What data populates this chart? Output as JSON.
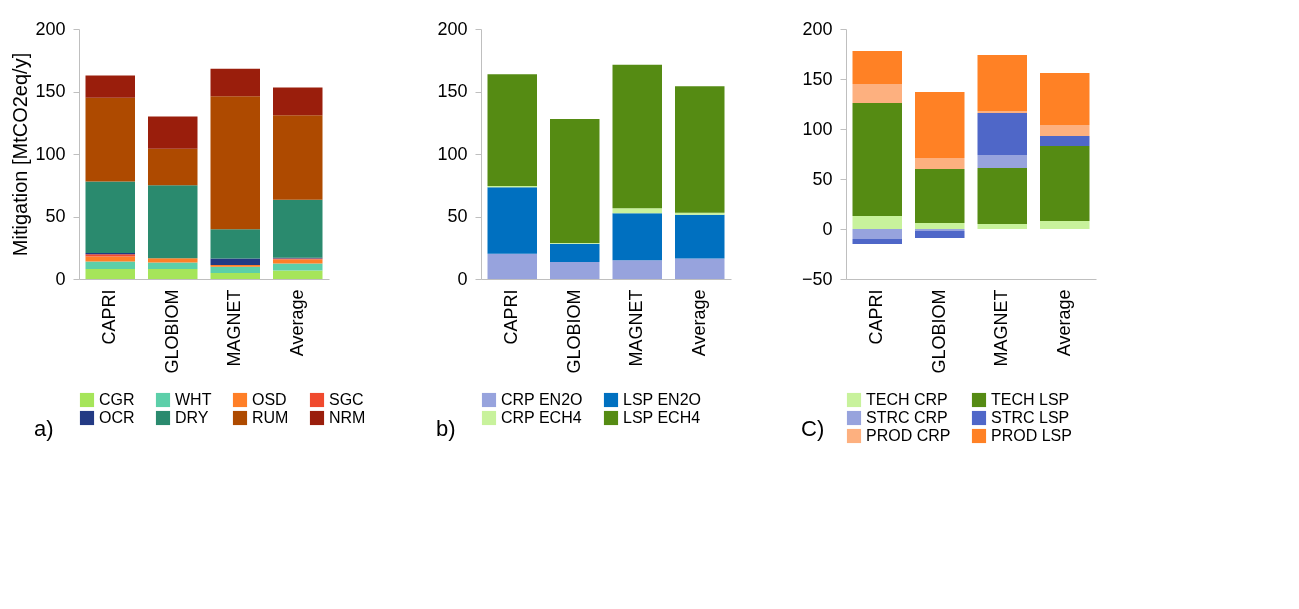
{
  "chart_data": [
    {
      "type": "bar",
      "stacked": true,
      "ylabel": "Mitigation [MtCO2eq/y]",
      "categories": [
        "CAPRI",
        "GLOBIOM",
        "MAGNET",
        "Average"
      ],
      "ylim": [
        0,
        200
      ],
      "yticks": [
        0,
        50,
        100,
        150,
        200
      ],
      "grid": false,
      "legend": "bottom",
      "annotations": [
        "a)"
      ],
      "series": [
        {
          "name": "CGR",
          "color": "#a6e55a",
          "values": [
            8.1,
            8.0,
            4.8,
            6.9
          ]
        },
        {
          "name": "WHT",
          "color": "#5ccfa9",
          "values": [
            6.0,
            5.3,
            5.0,
            5.6
          ]
        },
        {
          "name": "OSD",
          "color": "#ff7f27",
          "values": [
            4.0,
            3.3,
            1.4,
            3.1
          ]
        },
        {
          "name": "SGC",
          "color": "#f04a2e",
          "values": [
            1.7,
            null,
            null,
            0.8
          ]
        },
        {
          "name": "OCR",
          "color": "#233a84",
          "values": [
            1.0,
            null,
            5.2,
            0.6
          ]
        },
        {
          "name": "DRY",
          "color": "#2a8a6e",
          "values": [
            57.2,
            58.4,
            23.5,
            46.4
          ]
        },
        {
          "name": "RUM",
          "color": "#ae4a00",
          "values": [
            67.0,
            29.2,
            106.3,
            67.6
          ]
        },
        {
          "name": "NRM",
          "color": "#9a1e0c",
          "values": [
            17.8,
            25.8,
            22.0,
            22.2
          ]
        }
      ]
    },
    {
      "type": "bar",
      "stacked": true,
      "categories": [
        "CAPRI",
        "GLOBIOM",
        "MAGNET",
        "Average"
      ],
      "ylim": [
        0,
        200
      ],
      "yticks": [
        0,
        50,
        100,
        150,
        200
      ],
      "grid": false,
      "legend": "bottom",
      "annotations": [
        "b)"
      ],
      "series": [
        {
          "name": "CRP EN2O",
          "color": "#97a3dd",
          "values": [
            20.3,
            13.6,
            15.1,
            16.4
          ]
        },
        {
          "name": "LSP EN2O",
          "color": "#0070c0",
          "values": [
            53.1,
            14.7,
            37.5,
            35.0
          ]
        },
        {
          "name": "CRP ECH4",
          "color": "#c8f29c",
          "values": [
            1.0,
            0.6,
            4.0,
            1.6
          ]
        },
        {
          "name": "LSP ECH4",
          "color": "#558b13",
          "values": [
            89.5,
            99.2,
            114.9,
            101.3
          ]
        }
      ]
    },
    {
      "type": "bar",
      "stacked": true,
      "categories": [
        "CAPRI",
        "GLOBIOM",
        "MAGNET",
        "Average"
      ],
      "ylim": [
        -50,
        200
      ],
      "yticks": [
        -50,
        0,
        50,
        100,
        150,
        200
      ],
      "grid": false,
      "legend": "bottom",
      "annotations": [
        "C)"
      ],
      "series": [
        {
          "name": "TECH CRP",
          "color": "#c8f29c",
          "values": [
            13,
            6,
            5,
            8
          ]
        },
        {
          "name": "TECH LSP",
          "color": "#558b13",
          "values": [
            113,
            54,
            56,
            75
          ]
        },
        {
          "name": "STRC CRP",
          "color": "#97a3dd",
          "values": [
            -10,
            -2,
            13,
            null
          ]
        },
        {
          "name": "STRC LSP",
          "color": "#4f67c8",
          "values": [
            -5,
            -7,
            42,
            10
          ]
        },
        {
          "name": "PROD CRP",
          "color": "#fdb07f",
          "values": [
            19,
            11,
            2,
            11
          ]
        },
        {
          "name": "PROD LSP",
          "color": "#ff8125",
          "values": [
            33,
            66,
            56,
            52
          ]
        }
      ]
    }
  ]
}
